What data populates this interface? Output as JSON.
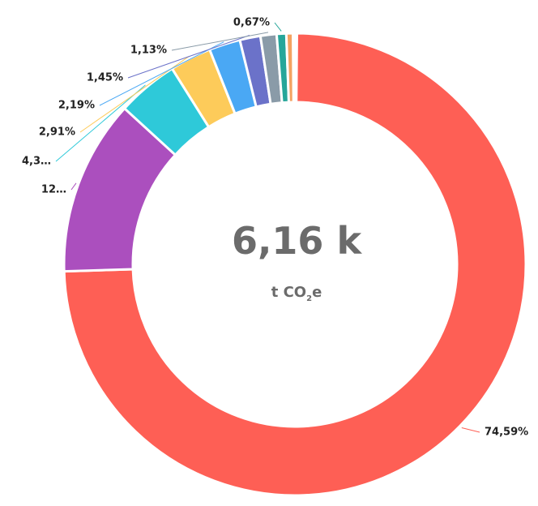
{
  "chart_data": {
    "type": "donut",
    "values": [
      74.59,
      12.3,
      4.3,
      2.91,
      2.19,
      1.45,
      1.13,
      0.67,
      0.46
    ],
    "value_labels": [
      "74,59%",
      "12…",
      "4,3…",
      "2,91%",
      "2,19%",
      "1,45%",
      "1,13%",
      "0,67%",
      null
    ],
    "colors": [
      "#fe5f55",
      "#ab4fbe",
      "#2ec9d9",
      "#fdcb5a",
      "#4aa8f4",
      "#6b72c9",
      "#8a9ba8",
      "#26a69a",
      "#f4a261"
    ],
    "center_value": "6,16 k",
    "center_unit": [
      "t CO",
      "2",
      "e"
    ]
  }
}
